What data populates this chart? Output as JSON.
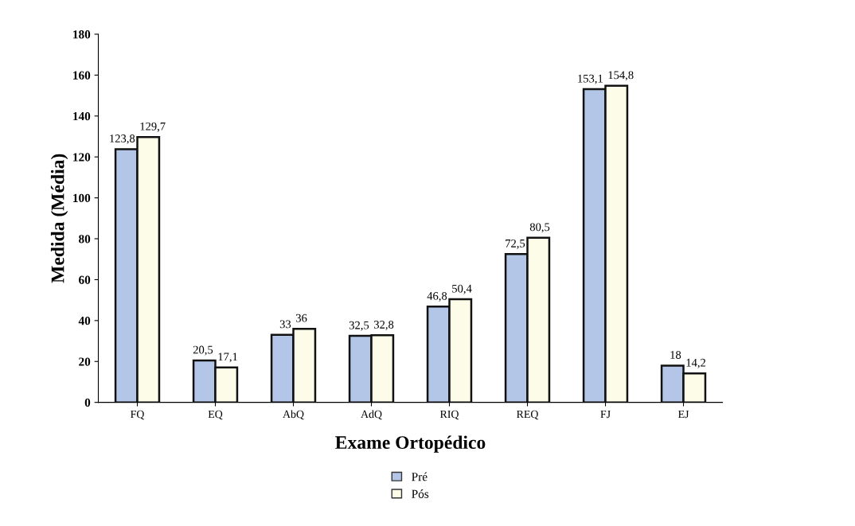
{
  "chart_data": {
    "type": "bar",
    "xlabel": "Exame Ortopédico",
    "ylabel": "Medida (Média)",
    "categories": [
      "FQ",
      "EQ",
      "AbQ",
      "AdQ",
      "RIQ",
      "REQ",
      "FJ",
      "EJ"
    ],
    "series": [
      {
        "name": "Pré",
        "color": "#b4c6e8",
        "values": [
          123.8,
          20.5,
          33,
          32.5,
          46.8,
          72.5,
          153.1,
          18
        ],
        "value_labels": [
          "123,8",
          "20,5",
          "33",
          "32,5",
          "46,8",
          "72,5",
          "153,1",
          "18"
        ]
      },
      {
        "name": "Pós",
        "color": "#fcfce8",
        "values": [
          129.7,
          17.1,
          36,
          32.8,
          50.4,
          80.5,
          154.8,
          14.2
        ],
        "value_labels": [
          "129,7",
          "17,1",
          "36",
          "32,8",
          "50,4",
          "80,5",
          "154,8",
          "14,2"
        ]
      }
    ],
    "ylim": [
      0,
      180
    ],
    "yticks": [
      0,
      20,
      40,
      60,
      80,
      100,
      120,
      140,
      160,
      180
    ],
    "grid": false,
    "legend": "bottom"
  }
}
